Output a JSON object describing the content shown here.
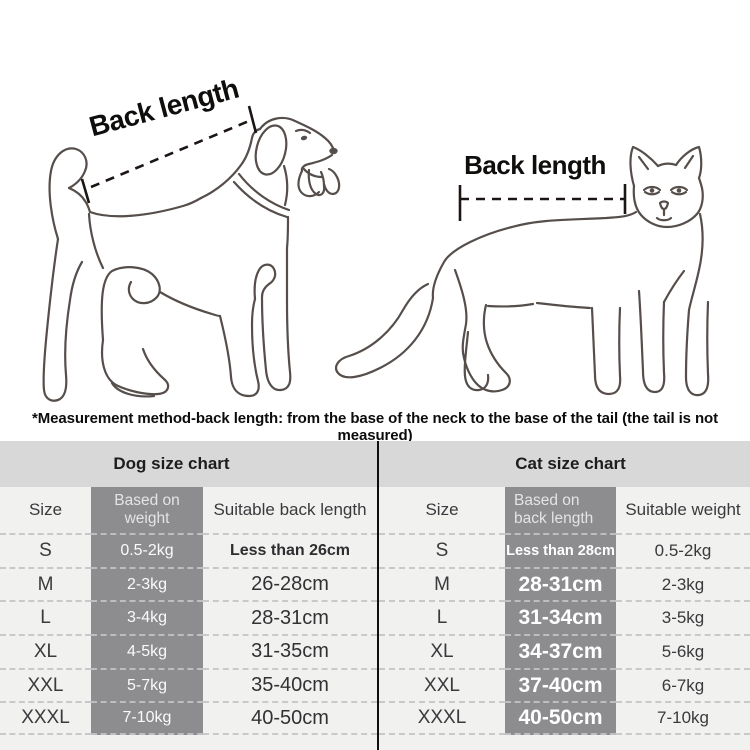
{
  "diagram": {
    "dog_back_length_label": "Back length",
    "cat_back_length_label": "Back length",
    "measurement_note": "*Measurement method-back length: from the base of the neck to the base of the tail (the tail is not measured)"
  },
  "dog_chart": {
    "title": "Dog size chart",
    "columns": [
      "Size",
      "Based on weight",
      "Suitable back length"
    ],
    "rows": [
      [
        "S",
        "0.5-2kg",
        "Less than 26cm"
      ],
      [
        "M",
        "2-3kg",
        "26-28cm"
      ],
      [
        "L",
        "3-4kg",
        "28-31cm"
      ],
      [
        "XL",
        "4-5kg",
        "31-35cm"
      ],
      [
        "XXL",
        "5-7kg",
        "35-40cm"
      ],
      [
        "XXXL",
        "7-10kg",
        "40-50cm"
      ]
    ]
  },
  "cat_chart": {
    "title": "Cat size chart",
    "columns": [
      "Size",
      "Based on back length",
      "Suitable weight"
    ],
    "rows": [
      [
        "S",
        "Less than 28cm",
        "0.5-2kg"
      ],
      [
        "M",
        "28-31cm",
        "2-3kg"
      ],
      [
        "L",
        "31-34cm",
        "3-5kg"
      ],
      [
        "XL",
        "34-37cm",
        "5-6kg"
      ],
      [
        "XXL",
        "37-40cm",
        "6-7kg"
      ],
      [
        "XXXL",
        "40-50cm",
        "7-10kg"
      ]
    ]
  },
  "colors": {
    "title_band": "#d8d8d8",
    "table_bg": "#f1f1f0",
    "highlight_band": "#8d8d90",
    "divider": "#0f0f0f",
    "dash_light": "#c9c9c9",
    "dash_on_band": "#bdbdc2",
    "line_art": "#554e4b"
  }
}
